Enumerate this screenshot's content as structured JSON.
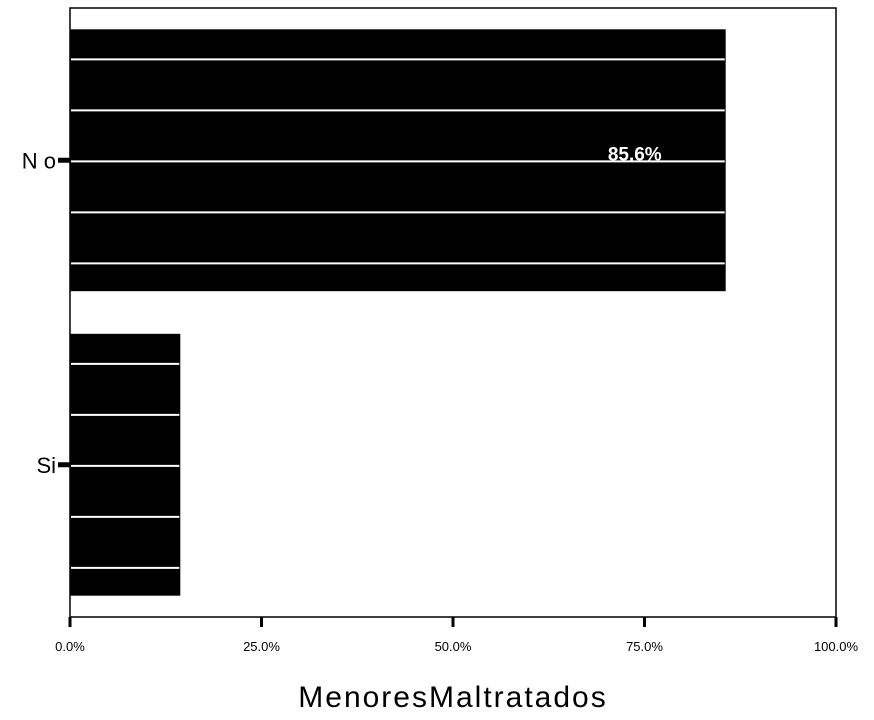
{
  "chart_data": {
    "type": "bar",
    "orientation": "horizontal",
    "categories": [
      "N o",
      "Si"
    ],
    "values": [
      85.6,
      14.4
    ],
    "data_labels": [
      "85.6%",
      ""
    ],
    "title": "",
    "xlabel": "MenoresMaltratados",
    "ylabel": "",
    "xlim": [
      0,
      100
    ],
    "x_ticks": [
      0,
      25,
      50,
      75,
      100
    ],
    "x_tick_labels": [
      "0.0%",
      "25.0%",
      "50.0%",
      "75.0%",
      "100.0%"
    ],
    "grid": false,
    "bar_color": "#000000",
    "bar_stripe_color": "#ffffff"
  }
}
